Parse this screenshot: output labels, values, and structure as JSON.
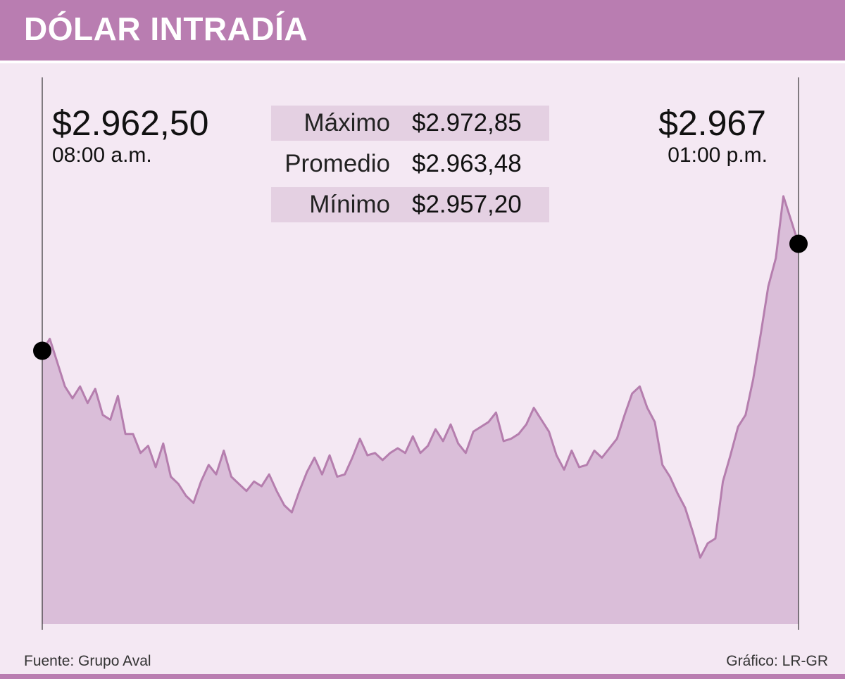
{
  "header": {
    "title": "DÓLAR INTRADÍA"
  },
  "start": {
    "price": "$2.962,50",
    "time": "08:00 a.m."
  },
  "end": {
    "price": "$2.967",
    "time": "01:00 p.m."
  },
  "stats": [
    {
      "label": "Máximo",
      "value": "$2.972,85"
    },
    {
      "label": "Promedio",
      "value": "$2.963,48"
    },
    {
      "label": "Mínimo",
      "value": "$2.957,20"
    }
  ],
  "footer": {
    "source": "Fuente: Grupo Aval",
    "credit": "Gráfico: LR-GR"
  },
  "colors": {
    "header": "#b97db1",
    "background": "#f4e8f3",
    "area_fill": "#dabed9",
    "line": "#b57eae"
  },
  "chart_data": {
    "type": "area",
    "title": "DÓLAR INTRADÍA",
    "xlabel": "",
    "ylabel": "",
    "x_start": "08:00 a.m.",
    "x_end": "01:00 p.m.",
    "ylim": [
      2951,
      2974
    ],
    "grid": false,
    "legend": "none",
    "x": [
      0,
      1,
      2,
      3,
      4,
      5,
      6,
      7,
      8,
      9,
      10,
      11,
      12,
      13,
      14,
      15,
      16,
      17,
      18,
      19,
      20,
      21,
      22,
      23,
      24,
      25,
      26,
      27,
      28,
      29,
      30,
      31,
      32,
      33,
      34,
      35,
      36,
      37,
      38,
      39,
      40,
      41,
      42,
      43,
      44,
      45,
      46,
      47,
      48,
      49,
      50,
      51,
      52,
      53,
      54,
      55,
      56,
      57,
      58,
      59,
      60,
      61,
      62,
      63,
      64,
      65,
      66,
      67,
      68,
      69,
      70,
      71,
      72,
      73,
      74,
      75,
      76,
      77,
      78,
      79,
      80,
      81,
      82,
      83,
      84,
      85,
      86,
      87,
      88,
      89,
      90,
      91,
      92,
      93,
      94,
      95,
      96,
      97,
      98,
      99,
      100
    ],
    "values": [
      2962.5,
      2963.0,
      2962.0,
      2961.0,
      2960.5,
      2961.0,
      2960.3,
      2960.9,
      2959.8,
      2959.6,
      2960.6,
      2959.0,
      2959.0,
      2958.2,
      2958.5,
      2957.6,
      2958.6,
      2957.2,
      2956.9,
      2956.4,
      2956.1,
      2957.0,
      2957.7,
      2957.3,
      2958.3,
      2957.2,
      2956.9,
      2956.6,
      2957.0,
      2956.8,
      2957.3,
      2956.6,
      2956.0,
      2955.7,
      2956.6,
      2957.4,
      2958.0,
      2957.3,
      2958.1,
      2957.2,
      2957.3,
      2958.0,
      2958.8,
      2958.1,
      2958.2,
      2957.9,
      2958.2,
      2958.4,
      2958.2,
      2958.9,
      2958.2,
      2958.5,
      2959.2,
      2958.7,
      2959.4,
      2958.6,
      2958.2,
      2959.1,
      2959.3,
      2959.5,
      2959.9,
      2958.7,
      2958.8,
      2959.0,
      2959.4,
      2960.1,
      2959.6,
      2959.1,
      2958.1,
      2957.5,
      2958.3,
      2957.6,
      2957.7,
      2958.3,
      2958.0,
      2958.4,
      2958.8,
      2959.8,
      2960.7,
      2961.0,
      2960.1,
      2959.5,
      2957.7,
      2957.2,
      2956.5,
      2955.9,
      2954.9,
      2953.8,
      2954.4,
      2954.6,
      2957.0,
      2958.1,
      2959.3,
      2959.8,
      2961.3,
      2963.2,
      2965.2,
      2966.4,
      2969.0,
      2968.0,
      2967.0
    ]
  }
}
